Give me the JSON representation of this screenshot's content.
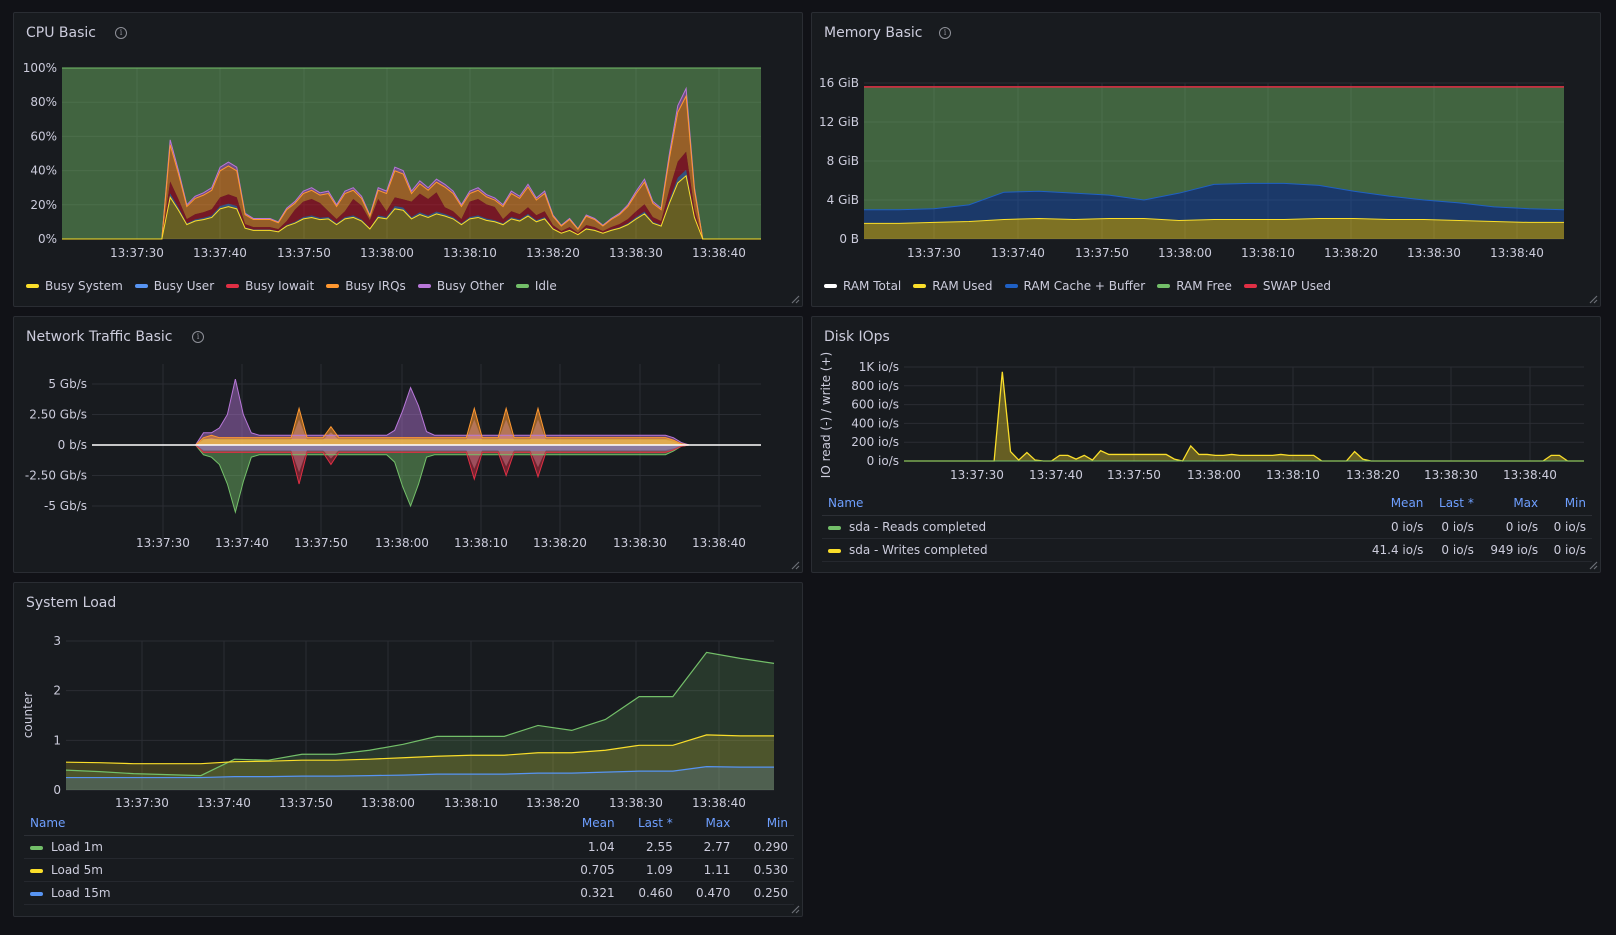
{
  "colors": {
    "green": "#73bf69",
    "yellow": "#fade2a",
    "blue": "#5794f2",
    "red": "#e02f44",
    "orange": "#ff9830",
    "purple": "#b877d9",
    "white": "#ffffff",
    "darkblue": "#1f60c4"
  },
  "cpu": {
    "title": "CPU Basic",
    "info_icon": "info-icon",
    "chart_data": {
      "type": "area",
      "stacked": true,
      "title": "CPU Basic",
      "x_ticks": [
        "13:37:30",
        "13:37:40",
        "13:37:50",
        "13:38:00",
        "13:38:10",
        "13:38:20",
        "13:38:30",
        "13:38:40"
      ],
      "y_ticks": [
        "0%",
        "20%",
        "40%",
        "60%",
        "80%",
        "100%"
      ],
      "ylim": [
        0,
        100
      ],
      "x": [
        0,
        1,
        2,
        3,
        4,
        5,
        6,
        7,
        8,
        9,
        10,
        11,
        12,
        13,
        14,
        15,
        16,
        17,
        18,
        19,
        20,
        21,
        22,
        23,
        24,
        25,
        26,
        27,
        28,
        29,
        30,
        31,
        32,
        33,
        34,
        35,
        36,
        37,
        38,
        39,
        40,
        41,
        42,
        43,
        44,
        45,
        46,
        47,
        48,
        49,
        50,
        51,
        52,
        53,
        54,
        55,
        56,
        57,
        58,
        59,
        60,
        61,
        62,
        63,
        64,
        65,
        66,
        67,
        68,
        69,
        70,
        71,
        72,
        73,
        74,
        75,
        76,
        77,
        78,
        79,
        80,
        81,
        82,
        83,
        84
      ],
      "busy_total": [
        0,
        0,
        0,
        0,
        0,
        0,
        0,
        0,
        0,
        0,
        0,
        0,
        0,
        58,
        40,
        20,
        25,
        27,
        30,
        42,
        45,
        42,
        15,
        12,
        12,
        12,
        10,
        18,
        22,
        28,
        30,
        27,
        28,
        20,
        28,
        30,
        25,
        14,
        30,
        28,
        42,
        40,
        28,
        34,
        30,
        35,
        32,
        28,
        20,
        28,
        30,
        26,
        24,
        20,
        28,
        25,
        32,
        24,
        28,
        14,
        8,
        12,
        6,
        14,
        12,
        8,
        12,
        15,
        20,
        28,
        35,
        22,
        18,
        50,
        78,
        88,
        30,
        0,
        0,
        0,
        0,
        0,
        0,
        0,
        0
      ],
      "legend": [
        {
          "name": "Busy System",
          "color": "#fade2a"
        },
        {
          "name": "Busy User",
          "color": "#5794f2"
        },
        {
          "name": "Busy Iowait",
          "color": "#e02f44"
        },
        {
          "name": "Busy IRQs",
          "color": "#ff9830"
        },
        {
          "name": "Busy Other",
          "color": "#b877d9"
        },
        {
          "name": "Idle",
          "color": "#73bf69"
        }
      ]
    }
  },
  "memory": {
    "title": "Memory Basic",
    "info_icon": "info-icon",
    "chart_data": {
      "type": "area",
      "stacked": true,
      "title": "Memory Basic",
      "x_ticks": [
        "13:37:30",
        "13:37:40",
        "13:37:50",
        "13:38:00",
        "13:38:10",
        "13:38:20",
        "13:38:30",
        "13:38:40"
      ],
      "y_ticks": [
        "0 B",
        "4 GiB",
        "8 GiB",
        "12 GiB",
        "16 GiB"
      ],
      "ylim_gib": [
        0,
        16
      ],
      "x": [
        0,
        1,
        2,
        3,
        4,
        5,
        6,
        7,
        8,
        9,
        10,
        11,
        12,
        13,
        14,
        15,
        16,
        17,
        18,
        19,
        20
      ],
      "ram_total_gib": [
        15.6,
        15.6,
        15.6,
        15.6,
        15.6,
        15.6,
        15.6,
        15.6,
        15.6,
        15.6,
        15.6,
        15.6,
        15.6,
        15.6,
        15.6,
        15.6,
        15.6,
        15.6,
        15.6,
        15.6,
        15.6
      ],
      "ram_used_gib": [
        1.6,
        1.6,
        1.7,
        1.8,
        2.0,
        2.1,
        2.0,
        2.1,
        2.1,
        1.9,
        2.0,
        2.0,
        2.0,
        2.1,
        2.1,
        2.0,
        2.0,
        1.9,
        1.8,
        1.7,
        1.7
      ],
      "ram_cache_buffer_top_gib": [
        3.0,
        3.0,
        3.1,
        3.5,
        4.8,
        4.9,
        4.7,
        4.5,
        4.0,
        4.7,
        5.6,
        5.7,
        5.7,
        5.5,
        4.9,
        4.4,
        4.0,
        3.7,
        3.3,
        3.1,
        3.0
      ],
      "swap_used_gib": [
        0,
        0,
        0,
        0,
        0,
        0,
        0,
        0,
        0,
        0,
        0,
        0,
        0,
        0,
        0,
        0,
        0,
        0,
        0,
        0,
        0
      ],
      "legend": [
        {
          "name": "RAM Total",
          "color": "#ffffff"
        },
        {
          "name": "RAM Used",
          "color": "#fade2a"
        },
        {
          "name": "RAM Cache + Buffer",
          "color": "#1f60c4"
        },
        {
          "name": "RAM Free",
          "color": "#73bf69"
        },
        {
          "name": "SWAP Used",
          "color": "#e02f44"
        }
      ]
    }
  },
  "network": {
    "title": "Network Traffic Basic",
    "info_icon": "info-icon",
    "chart_data": {
      "type": "area",
      "title": "Network Traffic Basic",
      "x_ticks": [
        "13:37:30",
        "13:37:40",
        "13:37:50",
        "13:38:00",
        "13:38:10",
        "13:38:20",
        "13:38:30",
        "13:38:40"
      ],
      "y_ticks": [
        "5 Gb/s",
        "2.50 Gb/s",
        "0 b/s",
        "-2.50 Gb/s",
        "-5 Gb/s"
      ],
      "ylim_gbps": [
        -6,
        6
      ],
      "x": [
        0,
        1,
        2,
        3,
        4,
        5,
        6,
        7,
        8,
        9,
        10,
        11,
        12,
        13,
        14,
        15,
        16,
        17,
        18,
        19,
        20,
        21,
        22,
        23,
        24,
        25,
        26,
        27,
        28,
        29,
        30,
        31,
        32,
        33,
        34,
        35,
        36,
        37,
        38,
        39,
        40,
        41,
        42,
        43,
        44,
        45,
        46,
        47,
        48,
        49,
        50,
        51,
        52,
        53,
        54,
        55,
        56,
        57,
        58,
        59,
        60,
        61,
        62,
        63,
        64,
        65,
        66,
        67,
        68,
        69,
        70,
        71,
        72,
        73,
        74,
        75,
        76,
        77,
        78,
        79,
        80,
        81,
        82,
        83,
        84
      ],
      "purple_up": [
        0,
        0,
        0,
        0,
        0,
        0,
        0,
        0,
        0,
        0,
        0,
        0,
        0,
        0,
        1.0,
        1.0,
        1.4,
        2.5,
        5.4,
        2.5,
        1.0,
        0.8,
        0.8,
        0.8,
        0.8,
        0.8,
        0.8,
        0.8,
        0.8,
        0.8,
        0.8,
        0.8,
        0.8,
        0.8,
        0.8,
        0.8,
        0.8,
        0.8,
        1.2,
        2.8,
        4.7,
        3.2,
        1.1,
        0.8,
        0.8,
        0.8,
        0.8,
        0.8,
        0.8,
        0.8,
        0.8,
        0.8,
        0.8,
        0.8,
        0.8,
        0.8,
        0.8,
        0.8,
        0.8,
        0.8,
        0.8,
        0.8,
        0.8,
        0.8,
        0.8,
        0.8,
        0.8,
        0.8,
        0.8,
        0.8,
        0.8,
        0.8,
        0.8,
        0.6,
        0.2,
        0,
        0,
        0,
        0,
        0,
        0,
        0,
        0,
        0,
        0
      ],
      "orange_up": [
        0,
        0,
        0,
        0,
        0,
        0,
        0,
        0,
        0,
        0,
        0,
        0,
        0,
        0,
        0.6,
        0.8,
        0.6,
        0.6,
        0.6,
        0.6,
        0.6,
        0.6,
        0.6,
        0.6,
        0.6,
        0.6,
        3.0,
        0.6,
        0.6,
        0.6,
        1.5,
        0.6,
        0.6,
        0.6,
        0.6,
        0.6,
        0.6,
        0.6,
        0.6,
        0.6,
        0.6,
        0.6,
        0.6,
        0.6,
        0.6,
        0.6,
        0.6,
        0.6,
        3.0,
        0.6,
        0.6,
        0.6,
        3.0,
        0.6,
        0.6,
        0.6,
        3.0,
        0.6,
        0.6,
        0.6,
        0.6,
        0.6,
        0.6,
        0.6,
        0.6,
        0.6,
        0.6,
        0.6,
        0.6,
        0.6,
        0.6,
        0.6,
        0.6,
        0.4,
        0.1,
        0,
        0,
        0,
        0,
        0,
        0,
        0,
        0,
        0,
        0
      ],
      "green_down": [
        0,
        0,
        0,
        0,
        0,
        0,
        0,
        0,
        0,
        0,
        0,
        0,
        0,
        0,
        -0.8,
        -1.0,
        -1.6,
        -3.2,
        -5.5,
        -3.0,
        -1.0,
        -0.8,
        -0.8,
        -0.8,
        -0.8,
        -0.8,
        -0.8,
        -0.8,
        -0.8,
        -0.8,
        -0.8,
        -0.8,
        -0.8,
        -0.8,
        -0.8,
        -0.8,
        -0.8,
        -0.8,
        -1.4,
        -3.4,
        -5.0,
        -3.2,
        -1.0,
        -0.8,
        -0.8,
        -0.8,
        -0.8,
        -0.8,
        -0.8,
        -0.8,
        -0.8,
        -0.8,
        -0.8,
        -0.8,
        -0.8,
        -0.8,
        -0.8,
        -0.8,
        -0.8,
        -0.8,
        -0.8,
        -0.8,
        -0.8,
        -0.8,
        -0.8,
        -0.8,
        -0.8,
        -0.8,
        -0.8,
        -0.8,
        -0.8,
        -0.8,
        -0.8,
        -0.5,
        -0.1,
        0,
        0,
        0,
        0,
        0,
        0,
        0,
        0,
        0,
        0
      ],
      "red_down": [
        0,
        0,
        0,
        0,
        0,
        0,
        0,
        0,
        0,
        0,
        0,
        0,
        0,
        0,
        -0.6,
        -0.6,
        -0.6,
        -0.6,
        -0.6,
        -0.6,
        -0.6,
        -0.6,
        -0.6,
        -0.6,
        -0.6,
        -0.6,
        -3.2,
        -0.6,
        -0.6,
        -0.6,
        -1.6,
        -0.6,
        -0.6,
        -0.6,
        -0.6,
        -0.6,
        -0.6,
        -0.6,
        -0.6,
        -0.6,
        -0.6,
        -0.6,
        -0.6,
        -0.6,
        -0.6,
        -0.6,
        -0.6,
        -0.6,
        -2.8,
        -0.6,
        -0.6,
        -0.6,
        -2.5,
        -0.6,
        -0.6,
        -0.6,
        -2.6,
        -0.6,
        -0.6,
        -0.6,
        -0.6,
        -0.6,
        -0.6,
        -0.6,
        -0.6,
        -0.6,
        -0.6,
        -0.6,
        -0.6,
        -0.6,
        -0.6,
        -0.6,
        -0.6,
        -0.4,
        -0.1,
        0,
        0,
        0,
        0,
        0,
        0,
        0,
        0,
        0,
        0
      ]
    }
  },
  "disk": {
    "title": "Disk IOps",
    "y_axis_label": "IO read (-) / write (+)",
    "chart_data": {
      "type": "area",
      "title": "Disk IOps",
      "ylabel": "IO read (-) / write (+)",
      "x_ticks": [
        "13:37:30",
        "13:37:40",
        "13:37:50",
        "13:38:00",
        "13:38:10",
        "13:38:20",
        "13:38:30",
        "13:38:40"
      ],
      "y_ticks": [
        "0 io/s",
        "200 io/s",
        "400 io/s",
        "600 io/s",
        "800 io/s",
        "1K io/s"
      ],
      "ylim": [
        0,
        1000
      ],
      "x": [
        0,
        1,
        2,
        3,
        4,
        5,
        6,
        7,
        8,
        9,
        10,
        11,
        12,
        13,
        14,
        15,
        16,
        17,
        18,
        19,
        20,
        21,
        22,
        23,
        24,
        25,
        26,
        27,
        28,
        29,
        30,
        31,
        32,
        33,
        34,
        35,
        36,
        37,
        38,
        39,
        40,
        41,
        42,
        43,
        44,
        45,
        46,
        47,
        48,
        49,
        50,
        51,
        52,
        53,
        54,
        55,
        56,
        57,
        58,
        59,
        60,
        61,
        62,
        63,
        64,
        65,
        66,
        67,
        68,
        69,
        70,
        71,
        72,
        73,
        74,
        75,
        76,
        77,
        78,
        79,
        80,
        81,
        82,
        83
      ],
      "writes": [
        0,
        0,
        0,
        0,
        0,
        0,
        0,
        0,
        0,
        0,
        0,
        0,
        949,
        100,
        10,
        90,
        10,
        0,
        0,
        60,
        60,
        20,
        60,
        10,
        110,
        70,
        70,
        70,
        70,
        70,
        70,
        70,
        70,
        20,
        0,
        160,
        70,
        70,
        60,
        60,
        70,
        60,
        60,
        60,
        60,
        60,
        70,
        60,
        60,
        60,
        60,
        0,
        0,
        0,
        0,
        100,
        20,
        0,
        0,
        0,
        0,
        0,
        0,
        0,
        0,
        0,
        0,
        0,
        0,
        0,
        0,
        0,
        0,
        0,
        0,
        0,
        0,
        0,
        0,
        60,
        60,
        0,
        0,
        0
      ],
      "reads": [
        0,
        0,
        0,
        0,
        0,
        0,
        0,
        0,
        0,
        0,
        0,
        0,
        0,
        0,
        0,
        0,
        0,
        0,
        0,
        0,
        0,
        0,
        0,
        0,
        0,
        0,
        0,
        0,
        0,
        0,
        0,
        0,
        0,
        0,
        0,
        0,
        0,
        0,
        0,
        0,
        0,
        0,
        0,
        0,
        0,
        0,
        0,
        0,
        0,
        0,
        0,
        0,
        0,
        0,
        0,
        0,
        0,
        0,
        0,
        0,
        0,
        0,
        0,
        0,
        0,
        0,
        0,
        0,
        0,
        0,
        0,
        0,
        0,
        0,
        0,
        0,
        0,
        0,
        0,
        0,
        0,
        0,
        0,
        0
      ]
    },
    "table": {
      "headers": {
        "name": "Name",
        "mean": "Mean",
        "last": "Last *",
        "max": "Max",
        "min": "Min"
      },
      "rows": [
        {
          "name": "sda - Reads completed",
          "color": "#73bf69",
          "mean": "0 io/s",
          "last": "0 io/s",
          "max": "0 io/s",
          "min": "0 io/s"
        },
        {
          "name": "sda - Writes completed",
          "color": "#fade2a",
          "mean": "41.4 io/s",
          "last": "0 io/s",
          "max": "949 io/s",
          "min": "0 io/s"
        }
      ]
    }
  },
  "load": {
    "title": "System Load",
    "y_axis_label": "counter",
    "chart_data": {
      "type": "line",
      "title": "System Load",
      "ylabel": "counter",
      "x_ticks": [
        "13:37:30",
        "13:37:40",
        "13:37:50",
        "13:38:00",
        "13:38:10",
        "13:38:20",
        "13:38:30",
        "13:38:40"
      ],
      "y_ticks": [
        "0",
        "1",
        "2",
        "3"
      ],
      "ylim": [
        0,
        3
      ],
      "x": [
        0,
        1,
        2,
        3,
        4,
        5,
        6,
        7,
        8,
        9,
        10,
        11,
        12,
        13,
        14,
        15,
        16,
        17,
        18,
        19,
        20,
        21
      ],
      "series": [
        {
          "name": "Load 1m",
          "color": "#73bf69",
          "values": [
            0.4,
            0.37,
            0.33,
            0.31,
            0.29,
            0.62,
            0.6,
            0.72,
            0.72,
            0.8,
            0.92,
            1.08,
            1.08,
            1.08,
            1.3,
            1.2,
            1.42,
            1.88,
            1.88,
            2.77,
            2.65,
            2.55
          ]
        },
        {
          "name": "Load 5m",
          "color": "#fade2a",
          "values": [
            0.56,
            0.55,
            0.53,
            0.53,
            0.53,
            0.57,
            0.58,
            0.6,
            0.6,
            0.62,
            0.65,
            0.68,
            0.7,
            0.7,
            0.75,
            0.75,
            0.8,
            0.9,
            0.9,
            1.11,
            1.09,
            1.09
          ]
        },
        {
          "name": "Load 15m",
          "color": "#5794f2",
          "values": [
            0.25,
            0.25,
            0.25,
            0.25,
            0.25,
            0.27,
            0.27,
            0.28,
            0.28,
            0.29,
            0.3,
            0.32,
            0.32,
            0.32,
            0.34,
            0.34,
            0.36,
            0.38,
            0.38,
            0.47,
            0.46,
            0.46
          ]
        }
      ]
    },
    "table": {
      "headers": {
        "name": "Name",
        "mean": "Mean",
        "last": "Last *",
        "max": "Max",
        "min": "Min"
      },
      "rows": [
        {
          "name": "Load 1m",
          "color": "#73bf69",
          "mean": "1.04",
          "last": "2.55",
          "max": "2.77",
          "min": "0.290"
        },
        {
          "name": "Load 5m",
          "color": "#fade2a",
          "mean": "0.705",
          "last": "1.09",
          "max": "1.11",
          "min": "0.530"
        },
        {
          "name": "Load 15m",
          "color": "#5794f2",
          "mean": "0.321",
          "last": "0.460",
          "max": "0.470",
          "min": "0.250"
        }
      ]
    }
  }
}
